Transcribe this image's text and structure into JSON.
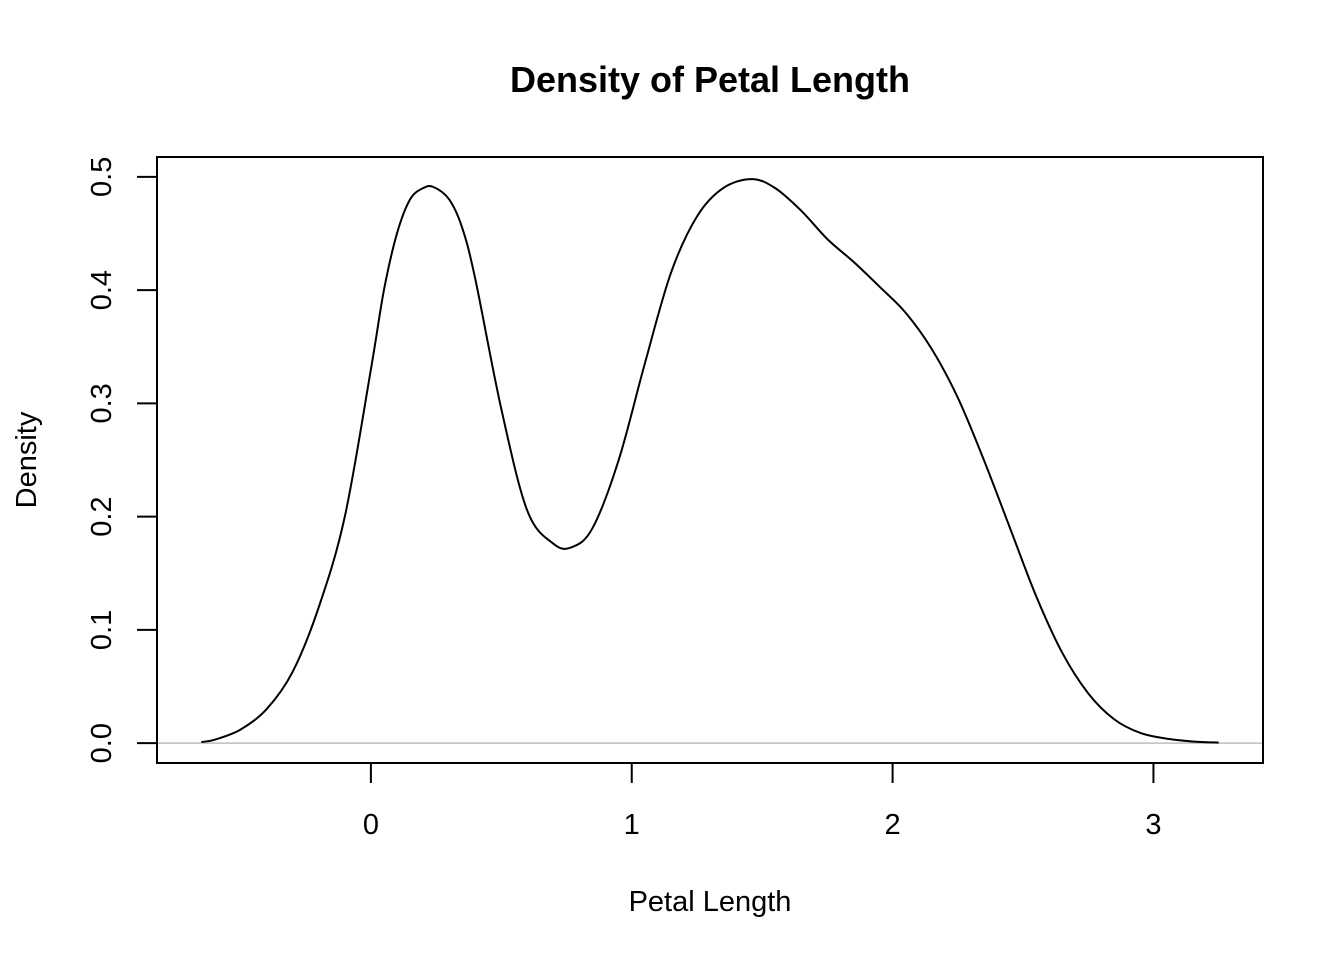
{
  "chart_data": {
    "type": "line",
    "title": "Density of Petal Length",
    "xlabel": "Petal Length",
    "ylabel": "Density",
    "xlim": [
      -0.82,
      3.42
    ],
    "ylim": [
      -0.0175,
      0.5175
    ],
    "x_ticks": [
      0,
      1,
      2,
      3
    ],
    "x_tick_labels": [
      "0",
      "1",
      "2",
      "3"
    ],
    "y_ticks": [
      0.0,
      0.1,
      0.2,
      0.3,
      0.4,
      0.5
    ],
    "y_tick_labels": [
      "0.0",
      "0.1",
      "0.2",
      "0.3",
      "0.4",
      "0.5"
    ],
    "baseline": 0,
    "colors": {
      "line": "#000000",
      "baseline": "#bebebe",
      "frame": "#000000",
      "background": "#ffffff"
    },
    "series": [
      {
        "name": "density",
        "x": [
          -0.65,
          -0.6,
          -0.5,
          -0.4,
          -0.3,
          -0.2,
          -0.1,
          0.0,
          0.05,
          0.1,
          0.15,
          0.2,
          0.24,
          0.3,
          0.35,
          0.4,
          0.5,
          0.6,
          0.7,
          0.77,
          0.85,
          0.95,
          1.05,
          1.15,
          1.25,
          1.35,
          1.46,
          1.55,
          1.65,
          1.75,
          1.85,
          1.95,
          2.05,
          2.15,
          2.25,
          2.35,
          2.45,
          2.55,
          2.65,
          2.75,
          2.85,
          2.95,
          3.05,
          3.15,
          3.25
        ],
        "y": [
          0.001,
          0.003,
          0.012,
          0.03,
          0.063,
          0.12,
          0.2,
          0.33,
          0.4,
          0.45,
          0.48,
          0.49,
          0.491,
          0.48,
          0.455,
          0.41,
          0.295,
          0.205,
          0.176,
          0.173,
          0.19,
          0.25,
          0.335,
          0.415,
          0.465,
          0.49,
          0.498,
          0.49,
          0.47,
          0.445,
          0.425,
          0.403,
          0.38,
          0.348,
          0.305,
          0.25,
          0.19,
          0.13,
          0.08,
          0.044,
          0.021,
          0.009,
          0.004,
          0.0015,
          0.0005
        ]
      }
    ]
  }
}
